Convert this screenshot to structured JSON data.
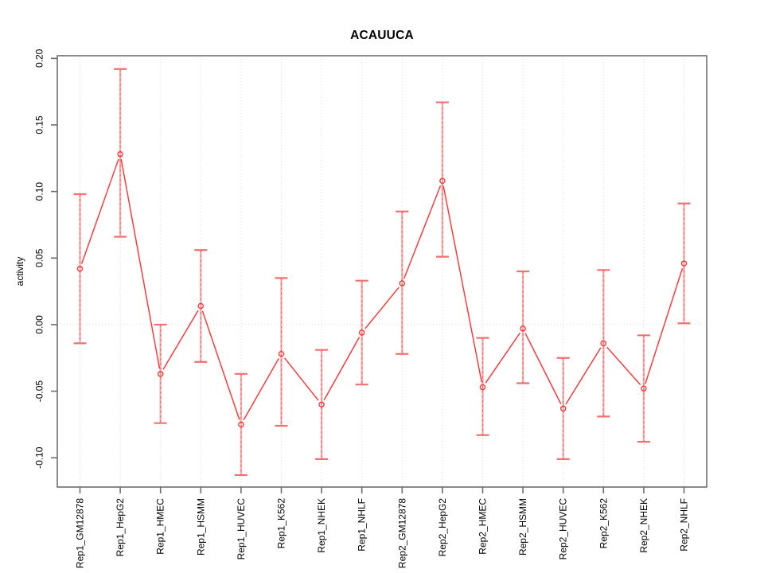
{
  "chart_data": {
    "type": "line",
    "title": "ACAUUCA",
    "xlabel": "",
    "ylabel": "activity",
    "ylim": [
      -0.122,
      0.202
    ],
    "yticks": [
      0.2,
      0.15,
      0.1,
      0.05,
      0,
      -0.05,
      -0.1
    ],
    "ytick_labels": [
      "0.20",
      "0.15",
      "0.10",
      "0.05",
      "0.00",
      "-0.05",
      "-0.10"
    ],
    "grid": {
      "vertical_dotted_per_category": true,
      "horizontal_dotted_zero_line": true
    },
    "legend": "none",
    "categories": [
      "Rep1_GM12878",
      "Rep1_HepG2",
      "Rep1_HMEC",
      "Rep1_HSMM",
      "Rep1_HUVEC",
      "Rep1_K562",
      "Rep1_NHEK",
      "Rep1_NHLF",
      "Rep2_GM12878",
      "Rep2_HepG2",
      "Rep2_HMEC",
      "Rep2_HSMM",
      "Rep2_HUVEC",
      "Rep2_K562",
      "Rep2_NHEK",
      "Rep2_NHLF"
    ],
    "series": [
      {
        "name": "activity",
        "marker": "open-circle",
        "values": [
          0.042,
          0.128,
          -0.037,
          0.014,
          -0.075,
          -0.022,
          -0.06,
          -0.006,
          0.031,
          0.108,
          -0.047,
          -0.003,
          -0.063,
          -0.014,
          -0.048,
          0.046
        ],
        "lower": [
          -0.014,
          0.066,
          -0.074,
          -0.028,
          -0.113,
          -0.076,
          -0.101,
          -0.045,
          -0.022,
          0.051,
          -0.083,
          -0.044,
          -0.101,
          -0.069,
          -0.088,
          0.001
        ],
        "upper": [
          0.098,
          0.192,
          0.0,
          0.056,
          -0.037,
          0.035,
          -0.019,
          0.033,
          0.085,
          0.167,
          -0.01,
          0.04,
          -0.025,
          0.041,
          -0.008,
          0.091
        ]
      }
    ],
    "colors": {
      "line": "#ff3030",
      "marker_stroke": "#ff3030",
      "errorbar_light": "#f7a1a1",
      "errorbar_dash": "#ee6262",
      "errorbar_cap": "#f26f6f",
      "grid": "#d8d8d8",
      "box": "#6e6e6e",
      "text": "#000000",
      "background": "#ffffff"
    }
  }
}
